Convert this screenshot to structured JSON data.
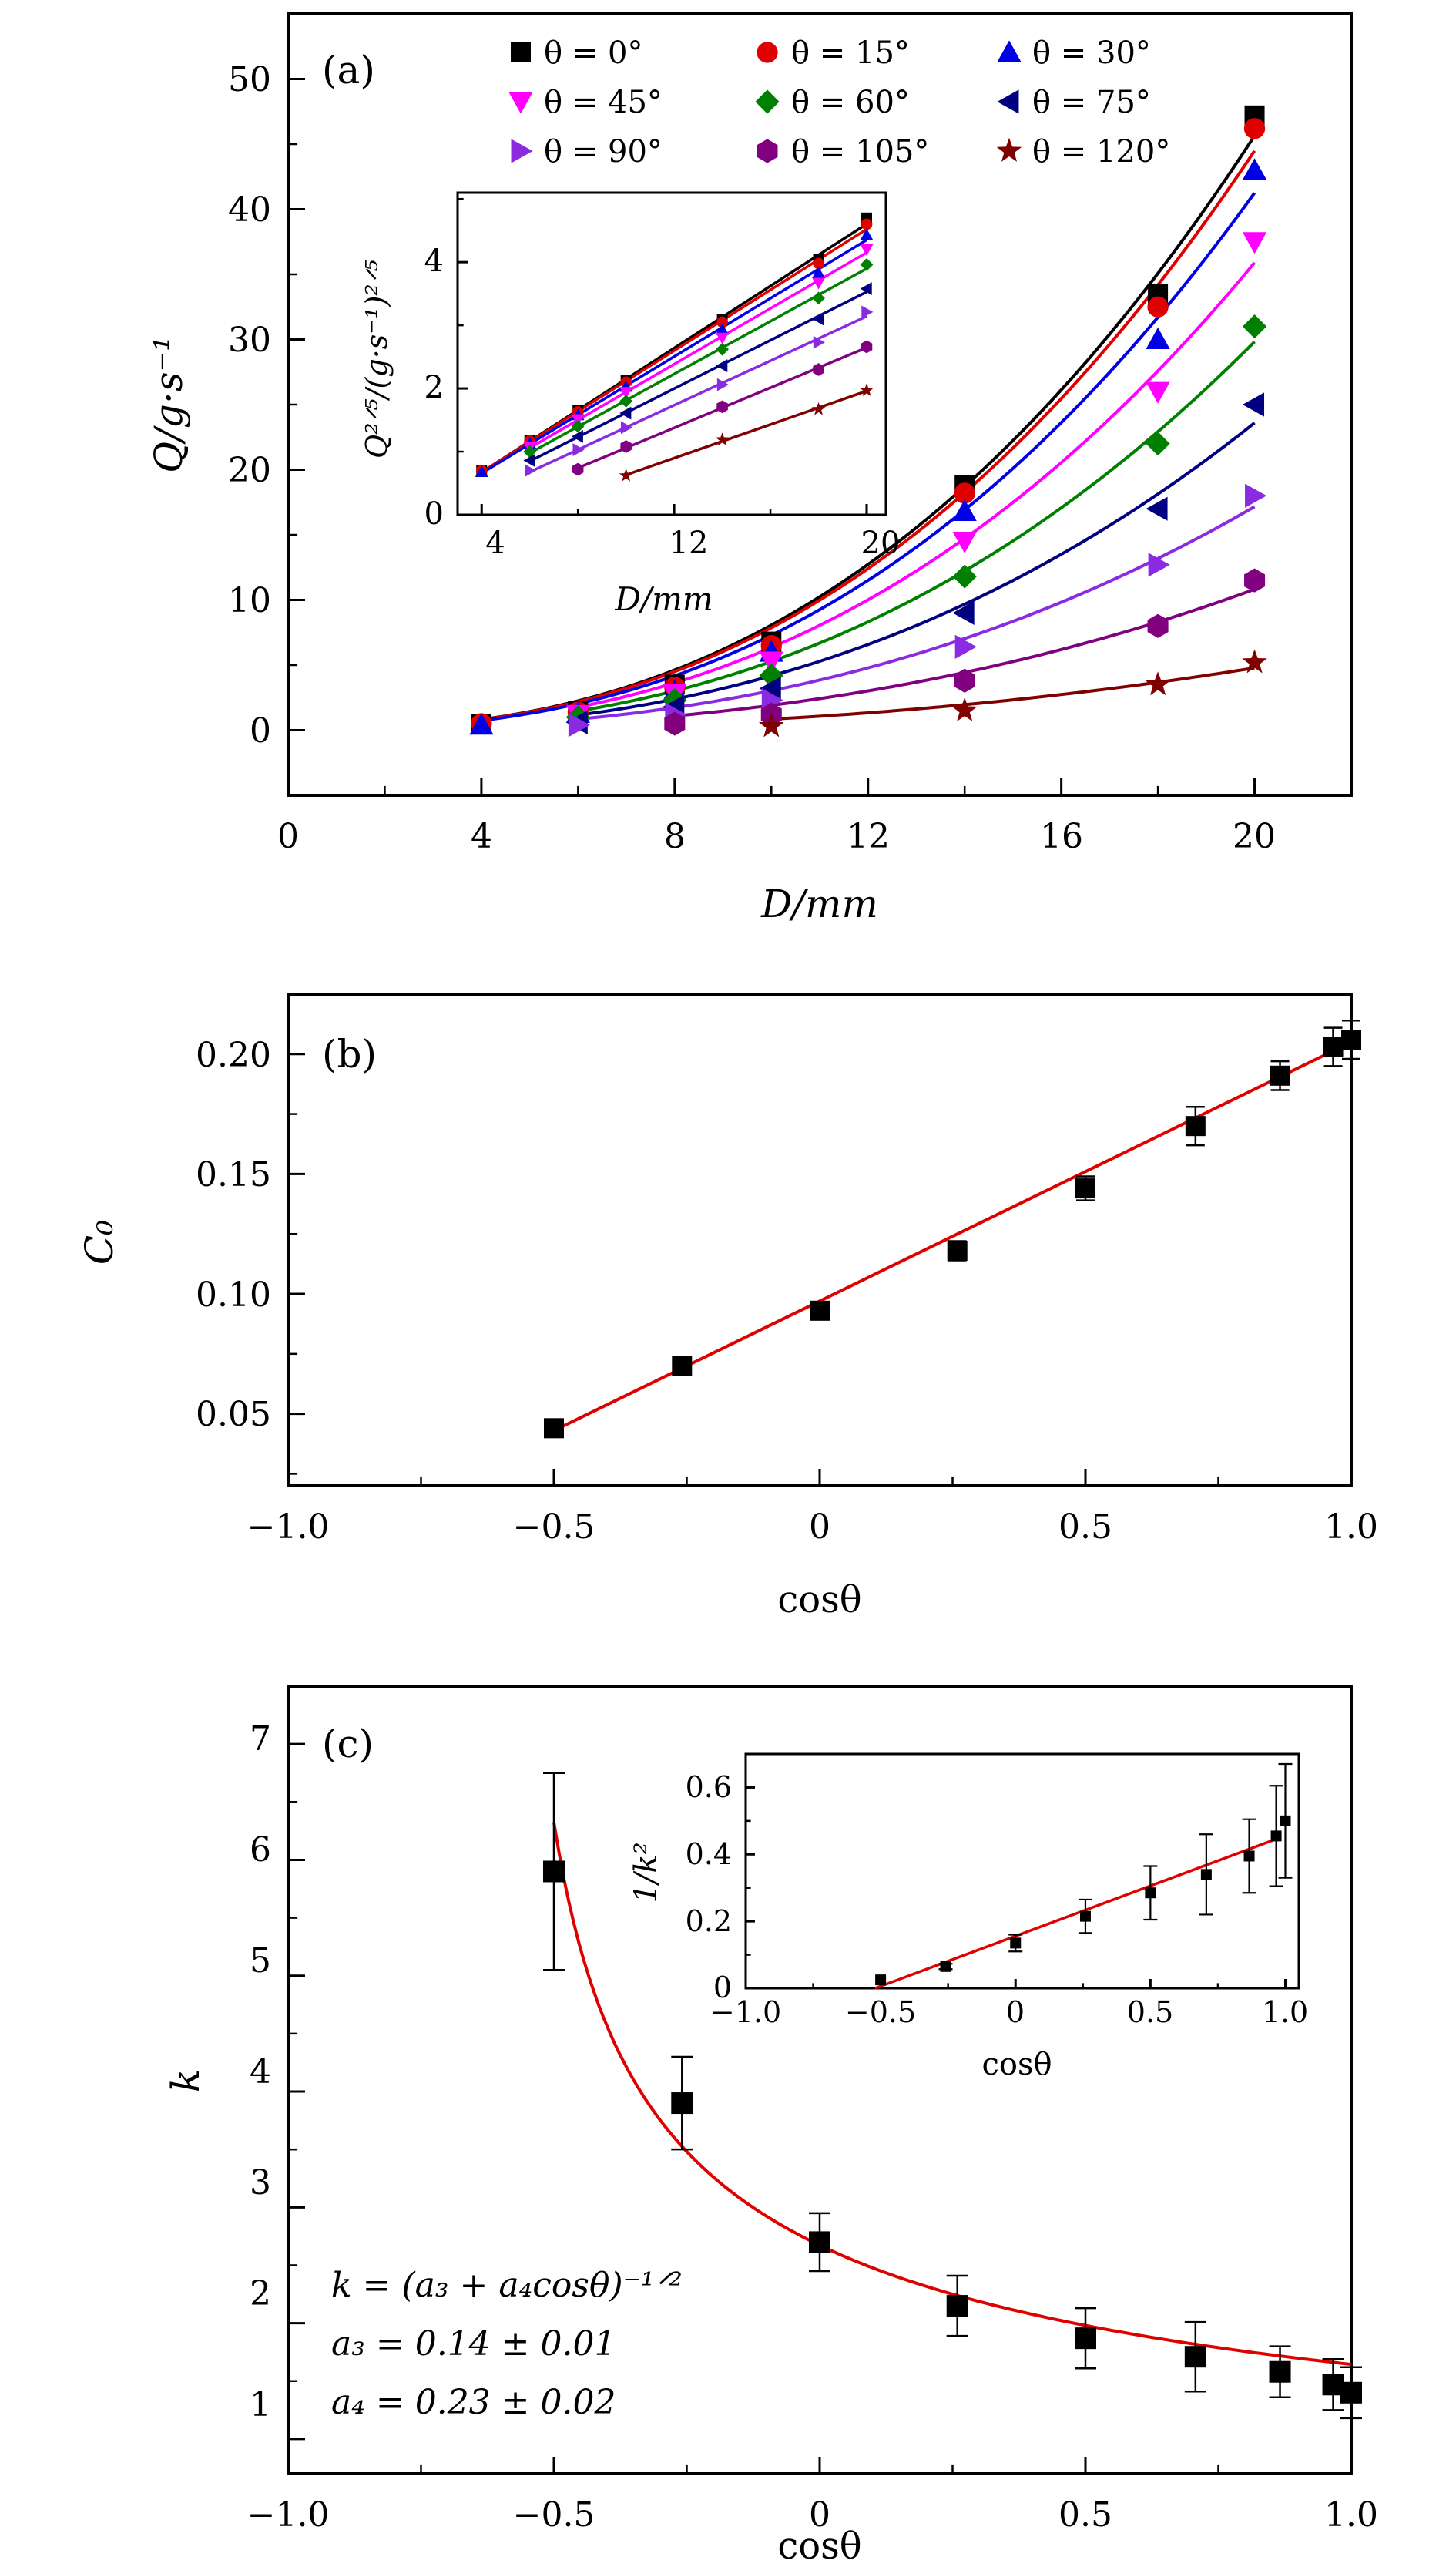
{
  "colors": {
    "s0": "#000000",
    "s15": "#e00000",
    "s30": "#0000e6",
    "s45": "#ff00ff",
    "s60": "#008000",
    "s75": "#000080",
    "s90": "#8a2be2",
    "s105": "#800080",
    "s120": "#800000",
    "fit": "#e00000"
  },
  "chart_data": [
    {
      "panel": "(a)",
      "type": "scatter",
      "xlabel": "D/mm",
      "ylabel": "Q/g·s⁻¹",
      "xlim": [
        0,
        22
      ],
      "ylim": [
        -5,
        55
      ],
      "xticks": [
        0,
        4,
        8,
        12,
        16,
        20
      ],
      "yticks": [
        0,
        10,
        20,
        30,
        40,
        50
      ],
      "legend_position": "top",
      "series": [
        {
          "name": "θ = 0°",
          "marker": "square",
          "color": "#000000",
          "x": [
            4,
            6,
            8,
            10,
            14,
            18,
            20
          ],
          "y": [
            0.5,
            1.5,
            3.5,
            6.8,
            18.8,
            33.5,
            47.2
          ]
        },
        {
          "name": "θ = 15°",
          "marker": "circle",
          "color": "#e00000",
          "x": [
            4,
            6,
            8,
            10,
            14,
            18,
            20
          ],
          "y": [
            0.5,
            1.4,
            3.3,
            6.5,
            18.2,
            32.5,
            46.2
          ]
        },
        {
          "name": "θ = 30°",
          "marker": "triangle-up",
          "color": "#0000e6",
          "x": [
            4,
            6,
            8,
            10,
            14,
            18,
            20
          ],
          "y": [
            0.4,
            1.3,
            3.0,
            6.0,
            16.8,
            30.0,
            43.0
          ]
        },
        {
          "name": "θ = 45°",
          "marker": "triangle-down",
          "color": "#ff00ff",
          "x": [
            6,
            8,
            10,
            14,
            18,
            20
          ],
          "y": [
            1.2,
            2.8,
            5.3,
            14.5,
            26.0,
            37.5
          ]
        },
        {
          "name": "θ = 60°",
          "marker": "diamond",
          "color": "#008000",
          "x": [
            6,
            8,
            10,
            14,
            18,
            20
          ],
          "y": [
            1.0,
            2.3,
            4.2,
            11.8,
            22.0,
            31.0
          ]
        },
        {
          "name": "θ = 75°",
          "marker": "triangle-left",
          "color": "#000080",
          "x": [
            6,
            8,
            10,
            14,
            18,
            20
          ],
          "y": [
            0.6,
            1.8,
            3.2,
            9.0,
            17.0,
            25.0
          ]
        },
        {
          "name": "θ = 90°",
          "marker": "triangle-right",
          "color": "#8a2be2",
          "x": [
            6,
            8,
            10,
            14,
            18,
            20
          ],
          "y": [
            0.4,
            1.2,
            2.3,
            6.4,
            12.7,
            18.0
          ]
        },
        {
          "name": "θ = 105°",
          "marker": "hexagon",
          "color": "#800080",
          "x": [
            8,
            10,
            14,
            18,
            20
          ],
          "y": [
            0.5,
            1.2,
            3.8,
            8.0,
            11.5
          ]
        },
        {
          "name": "θ = 120°",
          "marker": "star",
          "color": "#800000",
          "x": [
            10,
            14,
            18,
            20
          ],
          "y": [
            0.3,
            1.5,
            3.5,
            5.2
          ]
        }
      ],
      "inset": {
        "type": "line",
        "xlabel": "D/mm",
        "ylabel": "Q^{2/5}/(g·s⁻¹)^{2/5}",
        "xlim": [
          3,
          20.8
        ],
        "ylim": [
          0,
          5.1
        ],
        "xticks": [
          4,
          12,
          20
        ],
        "yticks": [
          0,
          2,
          4
        ],
        "series": [
          {
            "name": "θ = 0°",
            "x": [
              4,
              6,
              8,
              10,
              14,
              18,
              20
            ],
            "y": [
              0.7,
              1.18,
              1.65,
              2.13,
              3.09,
              4.04,
              4.7
            ]
          },
          {
            "name": "θ = 15°",
            "x": [
              4,
              6,
              8,
              10,
              14,
              18,
              20
            ],
            "y": [
              0.7,
              1.17,
              1.63,
              2.1,
              3.05,
              3.98,
              4.6
            ]
          },
          {
            "name": "θ = 30°",
            "x": [
              4,
              6,
              8,
              10,
              14,
              18,
              20
            ],
            "y": [
              0.68,
              1.13,
              1.58,
              2.03,
              2.93,
              3.83,
              4.43
            ]
          },
          {
            "name": "θ = 45°",
            "x": [
              6,
              8,
              10,
              14,
              18,
              20
            ],
            "y": [
              1.07,
              1.51,
              1.94,
              2.8,
              3.67,
              4.2
            ]
          },
          {
            "name": "θ = 60°",
            "x": [
              6,
              8,
              10,
              14,
              18,
              20
            ],
            "y": [
              1.0,
              1.4,
              1.8,
              2.62,
              3.43,
              3.96
            ]
          },
          {
            "name": "θ = 75°",
            "x": [
              6,
              8,
              10,
              14,
              18,
              20
            ],
            "y": [
              0.86,
              1.24,
              1.61,
              2.36,
              3.1,
              3.58
            ]
          },
          {
            "name": "θ = 90°",
            "x": [
              6,
              8,
              10,
              14,
              18,
              20
            ],
            "y": [
              0.7,
              1.03,
              1.38,
              2.06,
              2.73,
              3.21
            ]
          },
          {
            "name": "θ = 105°",
            "x": [
              8,
              10,
              14,
              18,
              20
            ],
            "y": [
              0.72,
              1.08,
              1.71,
              2.3,
              2.66
            ]
          },
          {
            "name": "θ = 120°",
            "x": [
              10,
              14,
              18,
              20
            ],
            "y": [
              0.62,
              1.19,
              1.67,
              1.97
            ]
          }
        ]
      }
    },
    {
      "panel": "(b)",
      "type": "scatter",
      "xlabel": "cosθ",
      "ylabel": "C₀",
      "xlim": [
        -1.0,
        1.0
      ],
      "ylim": [
        0.02,
        0.225
      ],
      "xticks": [
        -1.0,
        -0.5,
        0,
        0.5,
        1.0
      ],
      "yticks": [
        0.05,
        0.1,
        0.15,
        0.2
      ],
      "points": {
        "x": [
          -0.5,
          -0.259,
          0,
          0.259,
          0.5,
          0.707,
          0.866,
          0.966,
          1.0
        ],
        "y": [
          0.044,
          0.07,
          0.093,
          0.118,
          0.144,
          0.17,
          0.191,
          0.203,
          0.206
        ],
        "err": [
          0.002,
          0.002,
          0.003,
          0.004,
          0.005,
          0.008,
          0.006,
          0.008,
          0.008
        ]
      },
      "fit": {
        "x": [
          -0.5,
          1.0
        ],
        "y": [
          0.043,
          0.205
        ]
      }
    },
    {
      "panel": "(c)",
      "type": "scatter",
      "xlabel": "cosθ",
      "ylabel": "k",
      "xlim": [
        -1.0,
        1.0
      ],
      "ylim": [
        0.7,
        7.5
      ],
      "xticks": [
        -1.0,
        -0.5,
        0,
        0.5,
        1.0
      ],
      "yticks": [
        1,
        2,
        3,
        4,
        5,
        6,
        7
      ],
      "points": {
        "x": [
          -0.5,
          -0.259,
          0,
          0.259,
          0.5,
          0.707,
          0.866,
          0.966,
          1.0
        ],
        "y": [
          5.9,
          3.9,
          2.7,
          2.15,
          1.87,
          1.71,
          1.58,
          1.47,
          1.4
        ],
        "err": [
          0.85,
          0.4,
          0.25,
          0.26,
          0.26,
          0.3,
          0.22,
          0.22,
          0.22
        ]
      },
      "fit": {
        "formula": "k = (a3 + a4·cosθ)^(-1/2)",
        "a3": 0.14,
        "a4": 0.23
      },
      "annotations": [
        "k = (a₃ + a₄cosθ)⁻¹ᐟ²",
        "a₃ = 0.14 ± 0.01",
        "a₄ = 0.23 ± 0.02"
      ],
      "inset": {
        "type": "scatter",
        "xlabel": "cosθ",
        "ylabel": "1/k²",
        "xlim": [
          -1.0,
          1.05
        ],
        "ylim": [
          0,
          0.7
        ],
        "xticks": [
          -1.0,
          -0.5,
          0,
          0.5,
          1.0
        ],
        "yticks": [
          0,
          0.2,
          0.4,
          0.6
        ],
        "points": {
          "x": [
            -0.5,
            -0.259,
            0,
            0.259,
            0.5,
            0.707,
            0.866,
            0.966,
            1.0
          ],
          "y": [
            0.025,
            0.065,
            0.135,
            0.215,
            0.285,
            0.34,
            0.395,
            0.455,
            0.5
          ],
          "err": [
            0,
            0.008,
            0.025,
            0.05,
            0.08,
            0.12,
            0.11,
            0.15,
            0.17
          ]
        },
        "fit": {
          "x": [
            -0.52,
            0.98
          ],
          "y": [
            0.0,
            0.45
          ]
        }
      }
    }
  ],
  "labels": {
    "a": {
      "panel": "(a)",
      "xlabel": "D/mm",
      "ylabel": "Q/g·s⁻¹",
      "inset_xlabel": "D/mm",
      "inset_ylabel": "Q²ᐟ⁵/(g·s⁻¹)²ᐟ⁵",
      "xticks": [
        "0",
        "4",
        "8",
        "12",
        "16",
        "20"
      ],
      "yticks": [
        "0",
        "10",
        "20",
        "30",
        "40",
        "50"
      ],
      "inset_xticks": [
        "4",
        "12",
        "20"
      ],
      "inset_yticks": [
        "0",
        "2",
        "4"
      ],
      "legend": [
        "θ = 0°",
        "θ = 15°",
        "θ = 30°",
        "θ = 45°",
        "θ = 60°",
        "θ = 75°",
        "θ = 90°",
        "θ = 105°",
        "θ = 120°"
      ]
    },
    "b": {
      "panel": "(b)",
      "xlabel": "cosθ",
      "ylabel": "C₀",
      "xticks": [
        "−1.0",
        "−0.5",
        "0",
        "0.5",
        "1.0"
      ],
      "yticks": [
        "0.05",
        "0.10",
        "0.15",
        "0.20"
      ]
    },
    "c": {
      "panel": "(c)",
      "xlabel": "cosθ",
      "ylabel": "k",
      "inset_xlabel": "cosθ",
      "inset_ylabel": "1/k²",
      "xticks": [
        "−1.0",
        "−0.5",
        "0",
        "0.5",
        "1.0"
      ],
      "yticks": [
        "1",
        "2",
        "3",
        "4",
        "5",
        "6",
        "7"
      ],
      "inset_xticks": [
        "−1.0",
        "−0.5",
        "0",
        "0.5",
        "1.0"
      ],
      "inset_yticks": [
        "0",
        "0.2",
        "0.4",
        "0.6"
      ],
      "formula": "k = (a₃ + a₄cosθ)⁻¹ᐟ²",
      "a3": "a₃ = 0.14 ± 0.01",
      "a4": "a₄ = 0.23 ± 0.02"
    }
  }
}
